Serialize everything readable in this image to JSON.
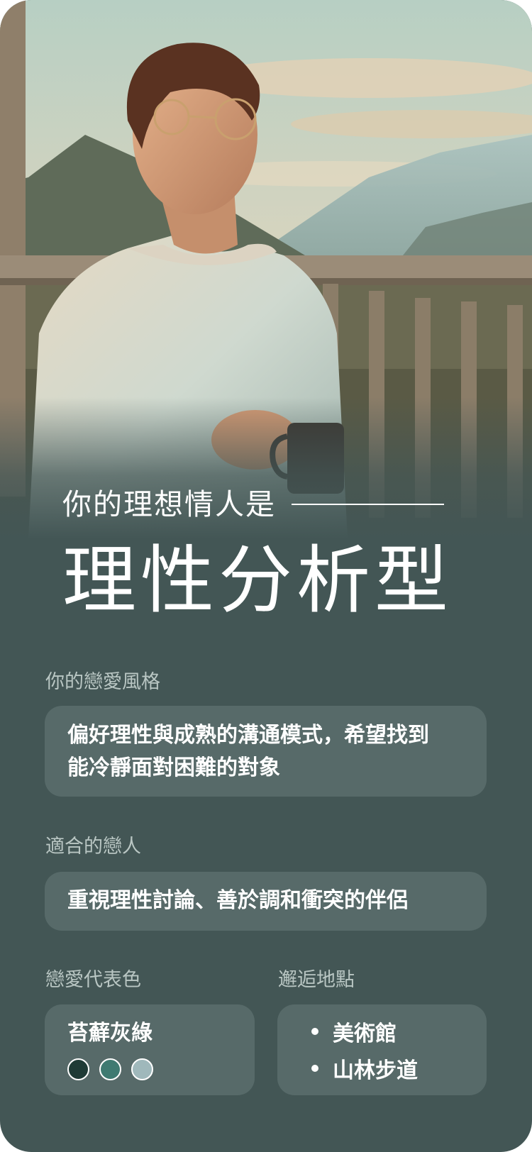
{
  "result": {
    "eyebrow": "你的理想情人是",
    "type_name": "理性分析型"
  },
  "love_style": {
    "label": "你的戀愛風格",
    "line1": "偏好理性與成熟的溝通模式，希望找到",
    "line2": "能冷靜面對困難的對象"
  },
  "match": {
    "label": "適合的戀人",
    "text": "重視理性討論、善於調和衝突的伴侶"
  },
  "color": {
    "label": "戀愛代表色",
    "name": "苔蘚灰綠",
    "swatches": [
      "#1f3b36",
      "#3f7a71",
      "#9fb8bb"
    ]
  },
  "place": {
    "label": "邂逅地點",
    "items": [
      "美術館",
      "山林步道"
    ]
  },
  "hero": {
    "image_icon": "man-with-coffee-on-balcony-illustration"
  }
}
